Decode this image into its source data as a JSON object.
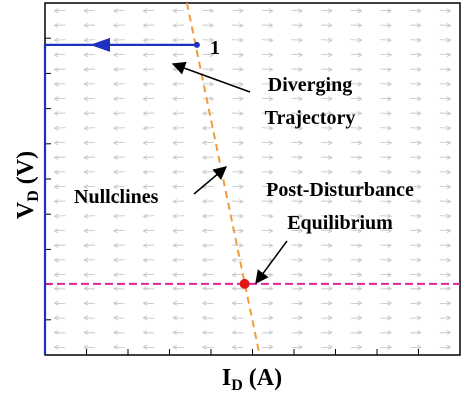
{
  "chart_data": {
    "type": "phase-portrait",
    "title": "",
    "xlabel": {
      "base": "I",
      "sub": "D",
      "unit": " (A)"
    },
    "ylabel": {
      "base": "V",
      "sub": "D",
      "unit": " (V)"
    },
    "xlim": [
      0,
      10
    ],
    "ylim": [
      0,
      10
    ],
    "grid": false,
    "vector_field": {
      "columns": 14,
      "rows": 24,
      "arrow_color": "#c8c8c8"
    },
    "series": [
      {
        "name": "Nullclines",
        "kind": "nullcline",
        "color": "#f39a3c",
        "style": "dashed",
        "x": [
          3.42,
          5.17
        ],
        "y": [
          10.0,
          0.0
        ]
      },
      {
        "name": "",
        "kind": "nullcline",
        "color": "#e0249a",
        "style": "dashed",
        "x": [
          0.0,
          10.0
        ],
        "y": [
          2.02,
          2.02
        ]
      },
      {
        "name": "Diverging Trajectory",
        "kind": "trajectory",
        "color": "#1f2fbf",
        "x": [
          3.66,
          0.0,
          0.0
        ],
        "y": [
          8.81,
          8.81,
          0.0
        ]
      }
    ],
    "points": [
      {
        "label": "1",
        "x": 3.66,
        "y": 8.81,
        "color": "#1f2fbf"
      },
      {
        "label": "",
        "x": 4.81,
        "y": 2.02,
        "color": "#e01818"
      }
    ],
    "annotations": [
      {
        "lines": [
          "Diverging",
          "Trajectory"
        ]
      },
      {
        "lines": [
          "Nullclines"
        ]
      },
      {
        "lines": [
          "Post-Disturbance",
          "Equilibrium"
        ]
      }
    ],
    "colors": {
      "axis": "#000000",
      "arrow": "#000000"
    }
  }
}
